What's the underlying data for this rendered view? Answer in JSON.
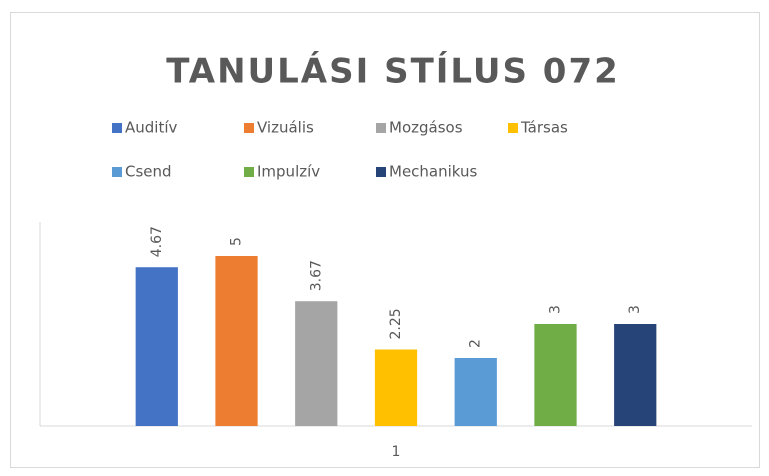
{
  "chart_data": {
    "type": "bar",
    "title": "TANULÁSI STÍLUS 072",
    "categories": [
      "1"
    ],
    "series": [
      {
        "name": "Auditív",
        "color": "#4472c4",
        "values": [
          4.67
        ]
      },
      {
        "name": "Vizuális",
        "color": "#ed7d31",
        "values": [
          5
        ]
      },
      {
        "name": "Mozgásos",
        "color": "#a5a5a5",
        "values": [
          3.67
        ]
      },
      {
        "name": "Társas",
        "color": "#ffc000",
        "values": [
          2.25
        ]
      },
      {
        "name": "Csend",
        "color": "#5b9bd5",
        "values": [
          2
        ]
      },
      {
        "name": "Impulzív",
        "color": "#70ad47",
        "values": [
          3
        ]
      },
      {
        "name": "Mechanikus",
        "color": "#264478",
        "values": [
          3
        ]
      }
    ],
    "ylim": [
      0,
      6
    ],
    "legend": "top",
    "data_labels": true
  }
}
